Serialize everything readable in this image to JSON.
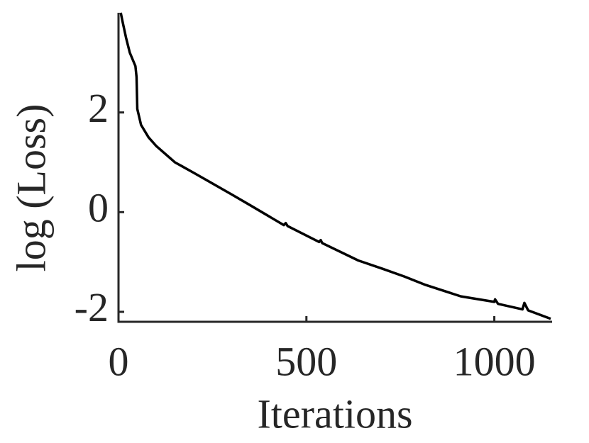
{
  "chart_data": {
    "type": "line",
    "xlabel": "Iterations",
    "ylabel": "log (Loss)",
    "x": [
      6,
      10,
      20,
      30,
      45,
      48,
      50,
      60,
      80,
      100,
      150,
      200,
      300,
      350,
      440,
      445,
      450,
      534,
      538,
      542,
      638,
      704,
      760,
      817,
      911,
      1000,
      1002,
      1010,
      1075,
      1080,
      1090,
      1150
    ],
    "series": [
      {
        "color": "#000000",
        "values": [
          4.0,
          3.85,
          3.5,
          3.2,
          2.93,
          2.71,
          2.07,
          1.75,
          1.5,
          1.33,
          1.0,
          0.79,
          0.36,
          0.14,
          -0.26,
          -0.22,
          -0.28,
          -0.6,
          -0.56,
          -0.62,
          -0.97,
          -1.14,
          -1.29,
          -1.46,
          -1.69,
          -1.8,
          -1.75,
          -1.84,
          -1.95,
          -1.82,
          -1.97,
          -2.14
        ]
      }
    ],
    "xlim": [
      0,
      1150
    ],
    "ylim": [
      -2.2,
      4.0
    ],
    "xticks": [
      0,
      500,
      1000
    ],
    "yticks": [
      -2,
      0,
      2
    ]
  }
}
